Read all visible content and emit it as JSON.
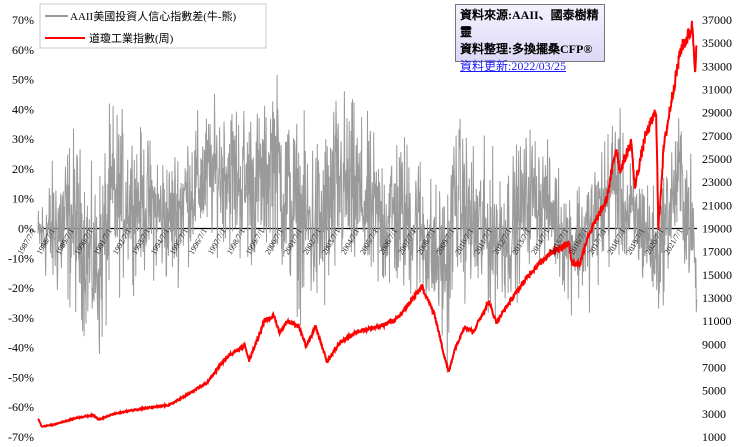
{
  "source": {
    "line1": "資料來源:AAII、國泰樹精靈",
    "line2": "資料整理:多換擺桑CFP®",
    "line3": "資料更新:2022/03/25"
  },
  "chart_data": {
    "type": "line",
    "legend": [
      {
        "name": "AAII美國投資人信心指數差(牛-熊)",
        "color": "#999999",
        "axis": "left"
      },
      {
        "name": "道瓊工業指數(周)",
        "color": "#ff0000",
        "axis": "right"
      }
    ],
    "x_ticks": [
      "1987/7/1",
      "1988/7/1",
      "1989/7/1",
      "1990/7/1",
      "1991/7/1",
      "1992/7/1",
      "1993/7/1",
      "1994/7/1",
      "1995/7/1",
      "1996/7/1",
      "1997/7/1",
      "1998/7/1",
      "1999/7/1",
      "2000/7/1",
      "2001/7/1",
      "2002/7/1",
      "2003/7/1",
      "2004/7/1",
      "2005/7/1",
      "2006/7/1",
      "2007/7/1",
      "2008/7/1",
      "2009/7/1",
      "2010/7/1",
      "2011/7/1",
      "2012/7/1",
      "2013/7/1",
      "2014/7/1",
      "2015/7/1",
      "2016/7/1",
      "2017/7/1",
      "2018/7/1",
      "2019/7/1",
      "2020/7/1",
      "2021/7/1"
    ],
    "y_left_ticks": [
      "70%",
      "60%",
      "50%",
      "40%",
      "30%",
      "20%",
      "10%",
      "0%",
      "-10%",
      "-20%",
      "-30%",
      "-40%",
      "-50%",
      "-60%",
      "-70%"
    ],
    "y_left_range": [
      -70,
      70
    ],
    "y_right_ticks": [
      "37000",
      "35000",
      "33000",
      "31000",
      "29000",
      "27000",
      "25000",
      "23000",
      "21000",
      "19000",
      "17000",
      "15000",
      "13000",
      "11000",
      "9000",
      "7000",
      "5000",
      "3000",
      "1000"
    ],
    "y_right_range": [
      1000,
      37000
    ],
    "x_range": [
      1987.6,
      2022.25
    ],
    "dow_series": [
      [
        1987.6,
        2600
      ],
      [
        1987.8,
        1900
      ],
      [
        1988.5,
        2100
      ],
      [
        1989.5,
        2600
      ],
      [
        1990.5,
        2900
      ],
      [
        1990.8,
        2500
      ],
      [
        1991.5,
        2950
      ],
      [
        1992.5,
        3300
      ],
      [
        1993.5,
        3550
      ],
      [
        1994.5,
        3750
      ],
      [
        1995.5,
        4700
      ],
      [
        1996.5,
        5700
      ],
      [
        1997.5,
        7900
      ],
      [
        1998.5,
        8900
      ],
      [
        1998.7,
        7600
      ],
      [
        1999.5,
        11000
      ],
      [
        2000.0,
        11500
      ],
      [
        2000.3,
        10000
      ],
      [
        2000.7,
        11000
      ],
      [
        2001.3,
        10600
      ],
      [
        2001.7,
        8800
      ],
      [
        2002.2,
        10500
      ],
      [
        2002.8,
        7500
      ],
      [
        2003.5,
        9200
      ],
      [
        2004.5,
        10200
      ],
      [
        2005.5,
        10500
      ],
      [
        2006.5,
        11200
      ],
      [
        2007.8,
        14000
      ],
      [
        2008.5,
        11300
      ],
      [
        2008.9,
        8400
      ],
      [
        2009.2,
        6600
      ],
      [
        2009.5,
        8500
      ],
      [
        2010.0,
        10500
      ],
      [
        2010.5,
        10100
      ],
      [
        2011.3,
        12700
      ],
      [
        2011.7,
        10900
      ],
      [
        2012.5,
        12900
      ],
      [
        2013.5,
        15200
      ],
      [
        2014.5,
        16900
      ],
      [
        2015.5,
        17700
      ],
      [
        2015.7,
        16000
      ],
      [
        2016.1,
        16000
      ],
      [
        2016.5,
        18300
      ],
      [
        2017.0,
        19900
      ],
      [
        2017.5,
        21500
      ],
      [
        2018.0,
        26000
      ],
      [
        2018.2,
        24000
      ],
      [
        2018.8,
        26500
      ],
      [
        2018.97,
        22500
      ],
      [
        2019.5,
        26800
      ],
      [
        2020.1,
        29200
      ],
      [
        2020.22,
        19000
      ],
      [
        2020.5,
        26000
      ],
      [
        2020.9,
        30000
      ],
      [
        2021.4,
        34500
      ],
      [
        2021.9,
        36000
      ],
      [
        2022.0,
        36500
      ],
      [
        2022.15,
        33000
      ],
      [
        2022.23,
        34800
      ]
    ],
    "aaii_band": [
      [
        1987.6,
        10,
        -15
      ],
      [
        1988.5,
        30,
        -30
      ],
      [
        1989.5,
        40,
        -35
      ],
      [
        1990.5,
        20,
        -45
      ],
      [
        1990.9,
        30,
        -54
      ],
      [
        1991.5,
        50,
        -30
      ],
      [
        1992.5,
        40,
        -20
      ],
      [
        1993.5,
        35,
        -20
      ],
      [
        1994.5,
        30,
        -25
      ],
      [
        1995.5,
        40,
        -15
      ],
      [
        1996.5,
        45,
        -10
      ],
      [
        1997.5,
        50,
        -10
      ],
      [
        1998.5,
        50,
        -20
      ],
      [
        1999.5,
        45,
        -15
      ],
      [
        2000.0,
        62,
        -10
      ],
      [
        2000.5,
        50,
        -25
      ],
      [
        2001.5,
        40,
        -35
      ],
      [
        2002.5,
        40,
        -40
      ],
      [
        2003.5,
        55,
        -25
      ],
      [
        2004.5,
        45,
        -25
      ],
      [
        2005.5,
        35,
        -30
      ],
      [
        2006.5,
        40,
        -30
      ],
      [
        2007.5,
        35,
        -30
      ],
      [
        2008.5,
        20,
        -40
      ],
      [
        2009.2,
        25,
        -51
      ],
      [
        2009.5,
        45,
        -20
      ],
      [
        2010.5,
        35,
        -35
      ],
      [
        2011.5,
        30,
        -35
      ],
      [
        2012.5,
        30,
        -30
      ],
      [
        2013.5,
        40,
        -15
      ],
      [
        2014.5,
        30,
        -15
      ],
      [
        2015.5,
        20,
        -30
      ],
      [
        2016.5,
        25,
        -30
      ],
      [
        2017.5,
        40,
        -20
      ],
      [
        2018.0,
        50,
        -15
      ],
      [
        2018.5,
        30,
        -20
      ],
      [
        2019.5,
        25,
        -25
      ],
      [
        2020.2,
        15,
        -35
      ],
      [
        2020.7,
        30,
        -20
      ],
      [
        2021.3,
        45,
        -10
      ],
      [
        2021.8,
        35,
        -25
      ],
      [
        2022.1,
        20,
        -30
      ],
      [
        2022.23,
        -20,
        -30
      ]
    ]
  }
}
